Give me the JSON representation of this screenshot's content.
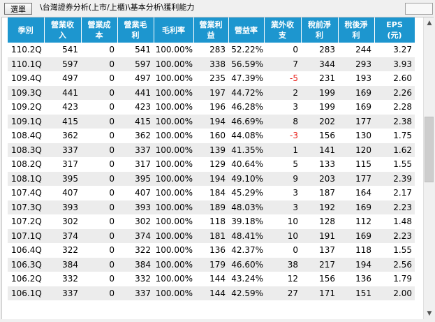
{
  "toolbar": {
    "select_label": "選單",
    "path": "\\台灣證券分析(上市/上櫃)\\基本分析\\獲利能力"
  },
  "table": {
    "headers": [
      "季別",
      "營業收入",
      "營業成本",
      "營業毛利",
      "毛利率",
      "營業利益",
      "營益率",
      "業外收支",
      "稅前淨利",
      "稅後淨利",
      "EPS\n(元)"
    ],
    "rows": [
      [
        "110.2Q",
        "541",
        "0",
        "541",
        "100.00%",
        "283",
        "52.22%",
        "0",
        "283",
        "244",
        "3.27"
      ],
      [
        "110.1Q",
        "597",
        "0",
        "597",
        "100.00%",
        "338",
        "56.59%",
        "7",
        "344",
        "293",
        "3.93"
      ],
      [
        "109.4Q",
        "497",
        "0",
        "497",
        "100.00%",
        "235",
        "47.39%",
        "-5",
        "231",
        "193",
        "2.60"
      ],
      [
        "109.3Q",
        "441",
        "0",
        "441",
        "100.00%",
        "197",
        "44.72%",
        "2",
        "199",
        "169",
        "2.26"
      ],
      [
        "109.2Q",
        "423",
        "0",
        "423",
        "100.00%",
        "196",
        "46.28%",
        "3",
        "199",
        "169",
        "2.28"
      ],
      [
        "109.1Q",
        "415",
        "0",
        "415",
        "100.00%",
        "194",
        "46.69%",
        "8",
        "202",
        "177",
        "2.38"
      ],
      [
        "108.4Q",
        "362",
        "0",
        "362",
        "100.00%",
        "160",
        "44.08%",
        "-3",
        "156",
        "130",
        "1.75"
      ],
      [
        "108.3Q",
        "337",
        "0",
        "337",
        "100.00%",
        "139",
        "41.35%",
        "1",
        "141",
        "120",
        "1.62"
      ],
      [
        "108.2Q",
        "317",
        "0",
        "317",
        "100.00%",
        "129",
        "40.64%",
        "5",
        "133",
        "115",
        "1.55"
      ],
      [
        "108.1Q",
        "395",
        "0",
        "395",
        "100.00%",
        "194",
        "49.10%",
        "9",
        "203",
        "177",
        "2.39"
      ],
      [
        "107.4Q",
        "407",
        "0",
        "407",
        "100.00%",
        "184",
        "45.29%",
        "3",
        "187",
        "164",
        "2.17"
      ],
      [
        "107.3Q",
        "393",
        "0",
        "393",
        "100.00%",
        "189",
        "48.03%",
        "3",
        "192",
        "169",
        "2.23"
      ],
      [
        "107.2Q",
        "302",
        "0",
        "302",
        "100.00%",
        "118",
        "39.18%",
        "10",
        "128",
        "112",
        "1.48"
      ],
      [
        "107.1Q",
        "374",
        "0",
        "374",
        "100.00%",
        "181",
        "48.41%",
        "10",
        "191",
        "169",
        "2.23"
      ],
      [
        "106.4Q",
        "322",
        "0",
        "322",
        "100.00%",
        "136",
        "42.37%",
        "0",
        "137",
        "118",
        "1.55"
      ],
      [
        "106.3Q",
        "384",
        "0",
        "384",
        "100.00%",
        "179",
        "46.60%",
        "38",
        "217",
        "194",
        "2.56"
      ],
      [
        "106.2Q",
        "332",
        "0",
        "332",
        "100.00%",
        "144",
        "43.24%",
        "12",
        "156",
        "136",
        "1.79"
      ],
      [
        "106.1Q",
        "337",
        "0",
        "337",
        "100.00%",
        "144",
        "42.59%",
        "27",
        "171",
        "151",
        "2.00"
      ]
    ],
    "negative_color": "#e8201a",
    "header_bg": "#1d96cf"
  },
  "scrollbar": {
    "up_icon": "▲",
    "down_icon": "▼"
  }
}
